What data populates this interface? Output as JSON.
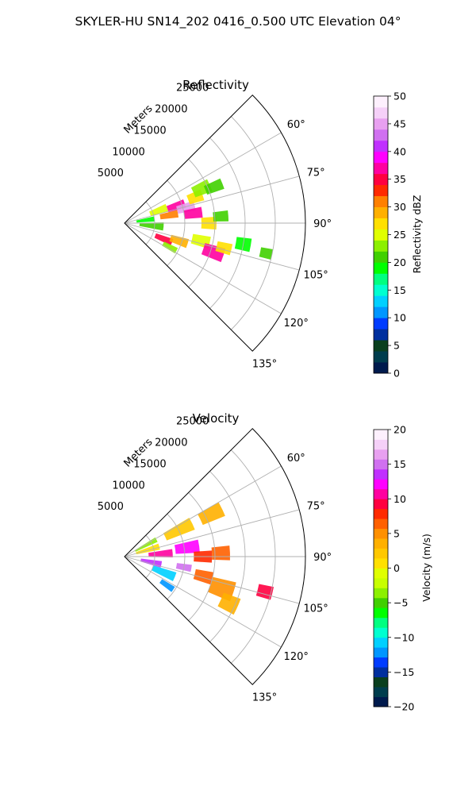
{
  "suptitle": "SKYLER-HU  SN14_202  0416_0.500 UTC Elevation 04°",
  "chart_data": [
    {
      "type": "heatmap",
      "subtype": "polar-sector",
      "title": "Reflectivity",
      "radial_axis_label": "Meters",
      "r_ticks": [
        "5000",
        "10000",
        "15000",
        "20000",
        "25000"
      ],
      "r_tick_values": [
        5000,
        10000,
        15000,
        20000,
        25000
      ],
      "r_max": 30000,
      "theta_range_deg": [
        45,
        135
      ],
      "theta_ticks": [
        "60°",
        "75°",
        "90°",
        "105°",
        "120°",
        "135°"
      ],
      "theta_tick_values": [
        60,
        75,
        90,
        105,
        120,
        135
      ],
      "grid": true,
      "colorbar": {
        "label": "Reflectivity dBZ",
        "min": 0,
        "max": 50,
        "ticks": [
          "0",
          "5",
          "10",
          "15",
          "20",
          "25",
          "30",
          "35",
          "40",
          "45",
          "50"
        ],
        "tick_values": [
          0,
          5,
          10,
          15,
          20,
          25,
          30,
          35,
          40,
          45,
          50
        ],
        "colors": [
          "#001a4d",
          "#003d4d",
          "#0a3f1e",
          "#002f9e",
          "#003cff",
          "#0096ff",
          "#00d0ff",
          "#00ffd0",
          "#00ff80",
          "#00ff00",
          "#40d000",
          "#8cf000",
          "#e0ff00",
          "#ffe000",
          "#ffb000",
          "#ff8000",
          "#ff2a00",
          "#ff0040",
          "#ff00a0",
          "#ff00ff",
          "#c030ff",
          "#d070f0",
          "#e8a0f0",
          "#f5d0f8",
          "#fdf0fd"
        ]
      },
      "cells": [
        {
          "r": 3500,
          "theta": 82,
          "dr": 3000,
          "dth": 10,
          "v": 18
        },
        {
          "r": 4500,
          "theta": 95,
          "dr": 4000,
          "dth": 12,
          "v": 20
        },
        {
          "r": 6000,
          "theta": 70,
          "dr": 3000,
          "dth": 10,
          "v": 24
        },
        {
          "r": 7500,
          "theta": 80,
          "dr": 3000,
          "dth": 8,
          "v": 30
        },
        {
          "r": 9000,
          "theta": 72,
          "dr": 3000,
          "dth": 8,
          "v": 36
        },
        {
          "r": 10500,
          "theta": 76,
          "dr": 3000,
          "dth": 8,
          "v": 44
        },
        {
          "r": 11500,
          "theta": 82,
          "dr": 3000,
          "dth": 8,
          "v": 36
        },
        {
          "r": 12500,
          "theta": 70,
          "dr": 2500,
          "dth": 8,
          "v": 26
        },
        {
          "r": 14000,
          "theta": 66,
          "dr": 3000,
          "dth": 8,
          "v": 22
        },
        {
          "r": 16000,
          "theta": 68,
          "dr": 3000,
          "dth": 6,
          "v": 20
        },
        {
          "r": 7000,
          "theta": 112,
          "dr": 3000,
          "dth": 8,
          "v": 34
        },
        {
          "r": 9500,
          "theta": 108,
          "dr": 3000,
          "dth": 8,
          "v": 28
        },
        {
          "r": 8500,
          "theta": 118,
          "dr": 2500,
          "dth": 6,
          "v": 22
        },
        {
          "r": 13000,
          "theta": 103,
          "dr": 3000,
          "dth": 8,
          "v": 24
        },
        {
          "r": 15500,
          "theta": 108,
          "dr": 3500,
          "dth": 8,
          "v": 36
        },
        {
          "r": 17000,
          "theta": 104,
          "dr": 2500,
          "dth": 6,
          "v": 26
        },
        {
          "r": 14000,
          "theta": 90,
          "dr": 2500,
          "dth": 8,
          "v": 26
        },
        {
          "r": 16000,
          "theta": 86,
          "dr": 2500,
          "dth": 6,
          "v": 20
        },
        {
          "r": 20000,
          "theta": 100,
          "dr": 2500,
          "dth": 6,
          "v": 18
        },
        {
          "r": 24000,
          "theta": 102,
          "dr": 2000,
          "dth": 4,
          "v": 20
        }
      ]
    },
    {
      "type": "heatmap",
      "subtype": "polar-sector",
      "title": "Velocity",
      "radial_axis_label": "Meters",
      "r_ticks": [
        "5000",
        "10000",
        "15000",
        "20000",
        "25000"
      ],
      "r_tick_values": [
        5000,
        10000,
        15000,
        20000,
        25000
      ],
      "r_max": 30000,
      "theta_range_deg": [
        45,
        135
      ],
      "theta_ticks": [
        "60°",
        "75°",
        "90°",
        "105°",
        "120°",
        "135°"
      ],
      "theta_tick_values": [
        60,
        75,
        90,
        105,
        120,
        135
      ],
      "grid": true,
      "colorbar": {
        "label": "Velocity (m/s)",
        "min": -20,
        "max": 20,
        "ticks": [
          "−20",
          "−15",
          "−10",
          "−5",
          "0",
          "5",
          "10",
          "15",
          "20"
        ],
        "tick_values": [
          -20,
          -15,
          -10,
          -5,
          0,
          5,
          10,
          15,
          20
        ],
        "colors": [
          "#001a4d",
          "#003d4d",
          "#0a3f1e",
          "#002f9e",
          "#003cff",
          "#0096ff",
          "#00d0ff",
          "#00ffd0",
          "#00ff80",
          "#00ff00",
          "#40d000",
          "#8cf000",
          "#c8ff00",
          "#e0ff00",
          "#ffe000",
          "#ffc800",
          "#ffb000",
          "#ff9000",
          "#ff6000",
          "#ff2a00",
          "#ff0040",
          "#ff00a0",
          "#ff00ff",
          "#c030ff",
          "#d070f0",
          "#e8a0f0",
          "#f5d0f8",
          "#fdf0fd"
        ]
      },
      "cells": [
        {
          "r": 4000,
          "theta": 62,
          "dr": 4000,
          "dth": 8,
          "v": -4
        },
        {
          "r": 4000,
          "theta": 74,
          "dr": 4000,
          "dth": 10,
          "v": 0
        },
        {
          "r": 10000,
          "theta": 64,
          "dr": 5000,
          "dth": 10,
          "v": 2
        },
        {
          "r": 16000,
          "theta": 64,
          "dr": 4000,
          "dth": 8,
          "v": 3
        },
        {
          "r": 6000,
          "theta": 86,
          "dr": 4000,
          "dth": 10,
          "v": 10
        },
        {
          "r": 10500,
          "theta": 82,
          "dr": 4000,
          "dth": 10,
          "v": 12
        },
        {
          "r": 13000,
          "theta": 90,
          "dr": 3000,
          "dth": 8,
          "v": 8
        },
        {
          "r": 16000,
          "theta": 88,
          "dr": 3000,
          "dth": 8,
          "v": 7
        },
        {
          "r": 4500,
          "theta": 102,
          "dr": 3500,
          "dth": 10,
          "v": 14
        },
        {
          "r": 7000,
          "theta": 112,
          "dr": 4000,
          "dth": 10,
          "v": -11
        },
        {
          "r": 8500,
          "theta": 124,
          "dr": 2500,
          "dth": 6,
          "v": -12
        },
        {
          "r": 10000,
          "theta": 100,
          "dr": 2500,
          "dth": 6,
          "v": 15
        },
        {
          "r": 13500,
          "theta": 104,
          "dr": 3000,
          "dth": 8,
          "v": 6
        },
        {
          "r": 17000,
          "theta": 108,
          "dr": 4000,
          "dth": 10,
          "v": 5
        },
        {
          "r": 19000,
          "theta": 114,
          "dr": 3000,
          "dth": 8,
          "v": 4
        },
        {
          "r": 24000,
          "theta": 104,
          "dr": 2500,
          "dth": 5,
          "v": 9
        }
      ]
    }
  ]
}
